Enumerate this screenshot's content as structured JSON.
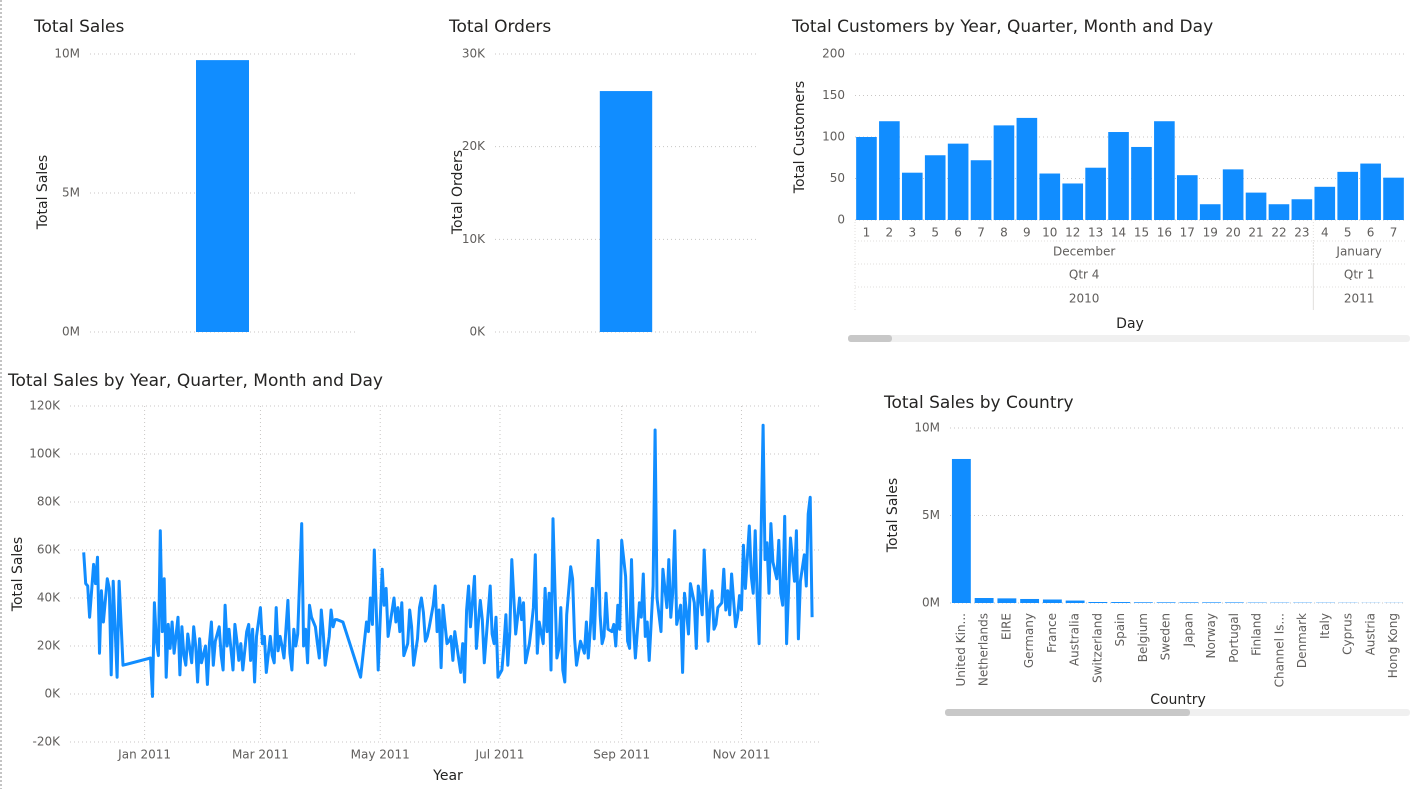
{
  "chart_data": [
    {
      "type": "bar",
      "title": "Total Sales",
      "y_label": "Total Sales",
      "color": "#118DFF",
      "categories": [
        null
      ],
      "values": [
        9780000
      ],
      "ylim": [
        0,
        10000000
      ],
      "yticks": [
        {
          "value": 0,
          "label": "0M"
        },
        {
          "value": 5000000,
          "label": "5M"
        },
        {
          "value": 10000000,
          "label": "10M"
        }
      ],
      "grid": true
    },
    {
      "type": "bar",
      "title": "Total Orders",
      "y_label": "Total Orders",
      "color": "#118DFF",
      "categories": [
        null
      ],
      "values": [
        26000
      ],
      "ylim": [
        0,
        30000
      ],
      "yticks": [
        {
          "value": 0,
          "label": "0K"
        },
        {
          "value": 10000,
          "label": "10K"
        },
        {
          "value": 20000,
          "label": "20K"
        },
        {
          "value": 30000,
          "label": "30K"
        }
      ],
      "grid": true
    },
    {
      "type": "bar",
      "title": "Total Customers by Year, Quarter, Month and Day",
      "y_label": "Total Customers",
      "x_label": "Day",
      "color": "#118DFF",
      "categories": [
        "1",
        "2",
        "3",
        "5",
        "6",
        "7",
        "8",
        "9",
        "10",
        "12",
        "13",
        "14",
        "15",
        "16",
        "17",
        "19",
        "20",
        "21",
        "22",
        "23",
        "4",
        "5",
        "6",
        "7"
      ],
      "months": [
        "December",
        "December",
        "December",
        "December",
        "December",
        "December",
        "December",
        "December",
        "December",
        "December",
        "December",
        "December",
        "December",
        "December",
        "December",
        "December",
        "December",
        "December",
        "December",
        "December",
        "January",
        "January",
        "January",
        "January"
      ],
      "quarters": [
        "Qtr 4",
        "Qtr 4",
        "Qtr 4",
        "Qtr 4",
        "Qtr 4",
        "Qtr 4",
        "Qtr 4",
        "Qtr 4",
        "Qtr 4",
        "Qtr 4",
        "Qtr 4",
        "Qtr 4",
        "Qtr 4",
        "Qtr 4",
        "Qtr 4",
        "Qtr 4",
        "Qtr 4",
        "Qtr 4",
        "Qtr 4",
        "Qtr 4",
        "Qtr 1",
        "Qtr 1",
        "Qtr 1",
        "Qtr 1"
      ],
      "years": [
        "2010",
        "2010",
        "2010",
        "2010",
        "2010",
        "2010",
        "2010",
        "2010",
        "2010",
        "2010",
        "2010",
        "2010",
        "2010",
        "2010",
        "2010",
        "2010",
        "2010",
        "2010",
        "2010",
        "2010",
        "2011",
        "2011",
        "2011",
        "2011"
      ],
      "values": [
        100,
        119,
        57,
        78,
        92,
        72,
        114,
        123,
        56,
        44,
        63,
        106,
        88,
        119,
        54,
        19,
        61,
        33,
        19,
        25,
        40,
        58,
        68,
        51
      ],
      "ylim": [
        0,
        200
      ],
      "yticks": [
        0,
        50,
        100,
        150,
        200
      ],
      "grid": true
    },
    {
      "type": "line",
      "title": "Total Sales by Year, Quarter, Month and Day",
      "y_label": "Total Sales",
      "x_label": "Year",
      "color": "#118DFF",
      "x": [
        0,
        1,
        2,
        3,
        5,
        6,
        7,
        8,
        9,
        10,
        12,
        13,
        14,
        15,
        17,
        18,
        20,
        34,
        35,
        36,
        37,
        38,
        39,
        40,
        41,
        42,
        43,
        44,
        45,
        46,
        48,
        49,
        50,
        51,
        52,
        53,
        55,
        56,
        57,
        58,
        59,
        60,
        62,
        63,
        64,
        65,
        66,
        67,
        69,
        70,
        71,
        72,
        73,
        74,
        76,
        77,
        78,
        79,
        80,
        81,
        83,
        84,
        85,
        86,
        87,
        88,
        90,
        91,
        92,
        93,
        95,
        96,
        97,
        98,
        99,
        100,
        101,
        102,
        104,
        105,
        106,
        107,
        108,
        109,
        111,
        112,
        113,
        114,
        115,
        116,
        118,
        119,
        120,
        121,
        122,
        123,
        125,
        126,
        127,
        128,
        129,
        132,
        141,
        144,
        145,
        146,
        147,
        148,
        149,
        150,
        152,
        153,
        154,
        155,
        156,
        158,
        159,
        160,
        161,
        162,
        163,
        165,
        166,
        167,
        168,
        170,
        171,
        172,
        173,
        174,
        175,
        176,
        178,
        179,
        180,
        181,
        182,
        183,
        185,
        186,
        187,
        188,
        189,
        190,
        192,
        193,
        194,
        195,
        196,
        197,
        199,
        200,
        201,
        202,
        203,
        204,
        206,
        207,
        208,
        209,
        210,
        211,
        213,
        214,
        215,
        216,
        217,
        218,
        220,
        221,
        222,
        223,
        224,
        225,
        227,
        228,
        229,
        230,
        231,
        232,
        234,
        235,
        236,
        237,
        238,
        239,
        241,
        242,
        243,
        244,
        245,
        246,
        248,
        249,
        250,
        251,
        252,
        253,
        255,
        256,
        257,
        258,
        259,
        260,
        262,
        263,
        264,
        265,
        266,
        267,
        269,
        270,
        271,
        272,
        273,
        274,
        276,
        277,
        278,
        279,
        280,
        281,
        283,
        284,
        285,
        286,
        287,
        288,
        290,
        291,
        292,
        293,
        294,
        295,
        297,
        298,
        299,
        300,
        301,
        302,
        304,
        305,
        306,
        307,
        308,
        309,
        311,
        312,
        313,
        314,
        315,
        316,
        318,
        319,
        320,
        321,
        322,
        323,
        325,
        326,
        327,
        328,
        329,
        330,
        332,
        333,
        334,
        335,
        336,
        337,
        339,
        340,
        341,
        342,
        343,
        344,
        346,
        347,
        348,
        349,
        350,
        351,
        353,
        354,
        355,
        356,
        357,
        358,
        360,
        361,
        362,
        363,
        364,
        365,
        367,
        368,
        369,
        370,
        371
      ],
      "values": [
        59000,
        46000,
        45000,
        32000,
        54000,
        46000,
        57000,
        17000,
        43000,
        30000,
        48000,
        44000,
        8000,
        47000,
        7000,
        47000,
        12000,
        15000,
        -1000,
        38000,
        22000,
        16000,
        68000,
        26000,
        48000,
        7000,
        29000,
        19000,
        30000,
        17000,
        32000,
        8000,
        28000,
        16000,
        12000,
        25000,
        13000,
        28000,
        20000,
        5000,
        23000,
        13000,
        20000,
        4000,
        21000,
        30000,
        12000,
        22000,
        28000,
        16000,
        10000,
        37000,
        20000,
        27000,
        10000,
        29000,
        22000,
        14000,
        21000,
        10000,
        26000,
        29000,
        14000,
        27000,
        5000,
        24000,
        36000,
        21000,
        24000,
        9000,
        24000,
        16000,
        13000,
        36000,
        18000,
        24000,
        20000,
        15000,
        39000,
        17000,
        10000,
        27000,
        20000,
        25000,
        71000,
        20000,
        27000,
        13000,
        37000,
        32000,
        28000,
        21000,
        15000,
        35000,
        25000,
        12000,
        24000,
        35000,
        28000,
        31000,
        31000,
        30000,
        7000,
        30000,
        26000,
        40000,
        29000,
        60000,
        35000,
        10000,
        52000,
        37000,
        44000,
        24000,
        29000,
        40000,
        30000,
        36000,
        26000,
        38000,
        16000,
        21000,
        35000,
        28000,
        12000,
        23000,
        36000,
        40000,
        34000,
        22000,
        24000,
        28000,
        37000,
        45000,
        26000,
        35000,
        11000,
        37000,
        21000,
        22000,
        24000,
        14000,
        26000,
        20000,
        9000,
        21000,
        5000,
        35000,
        45000,
        28000,
        49000,
        19000,
        30000,
        39000,
        31000,
        13000,
        34000,
        45000,
        25000,
        21000,
        32000,
        7000,
        10000,
        20000,
        33000,
        12000,
        26000,
        56000,
        25000,
        32000,
        40000,
        31000,
        38000,
        13000,
        21000,
        28000,
        36000,
        58000,
        17000,
        30000,
        21000,
        44000,
        26000,
        42000,
        10000,
        73000,
        15000,
        19000,
        36000,
        10000,
        5000,
        33000,
        53000,
        48000,
        23000,
        12000,
        17000,
        22000,
        17000,
        30000,
        15000,
        27000,
        44000,
        23000,
        64000,
        33000,
        21000,
        24000,
        42000,
        27000,
        26000,
        29000,
        20000,
        37000,
        27000,
        64000,
        49000,
        22000,
        19000,
        56000,
        28000,
        15000,
        38000,
        32000,
        50000,
        24000,
        30000,
        14000,
        45000,
        110000,
        40000,
        33000,
        26000,
        52000,
        36000,
        56000,
        32000,
        42000,
        68000,
        29000,
        37000,
        9000,
        42000,
        34000,
        25000,
        46000,
        38000,
        19000,
        45000,
        40000,
        33000,
        60000,
        22000,
        38000,
        43000,
        27000,
        29000,
        36000,
        38000,
        52000,
        35000,
        43000,
        33000,
        50000,
        28000,
        32000,
        41000,
        35000,
        62000,
        44000,
        70000,
        49000,
        42000,
        68000,
        40000,
        21000,
        112000,
        56000,
        63000,
        42000,
        71000,
        55000,
        48000,
        64000,
        42000,
        37000,
        74000,
        21000,
        65000,
        56000,
        47000,
        68000,
        23000,
        47000,
        58000,
        45000,
        75000,
        82000,
        32000
      ],
      "xlim": [
        -7,
        375
      ],
      "xticks": [
        {
          "value": 31,
          "label": "Jan 2011"
        },
        {
          "value": 90,
          "label": "Mar 2011"
        },
        {
          "value": 151,
          "label": "May 2011"
        },
        {
          "value": 212,
          "label": "Jul 2011"
        },
        {
          "value": 274,
          "label": "Sep 2011"
        },
        {
          "value": 335,
          "label": "Nov 2011"
        }
      ],
      "ylim": [
        -20000,
        120000
      ],
      "yticks": [
        {
          "value": -20000,
          "label": "-20K"
        },
        {
          "value": 0,
          "label": "0K"
        },
        {
          "value": 20000,
          "label": "20K"
        },
        {
          "value": 40000,
          "label": "40K"
        },
        {
          "value": 60000,
          "label": "60K"
        },
        {
          "value": 80000,
          "label": "80K"
        },
        {
          "value": 100000,
          "label": "100K"
        },
        {
          "value": 120000,
          "label": "120K"
        }
      ],
      "grid": true
    },
    {
      "type": "bar",
      "title": "Total Sales by Country",
      "y_label": "Total Sales",
      "x_label": "Country",
      "color": "#118DFF",
      "categories": [
        "United Kin...",
        "Netherlands",
        "EIRE",
        "Germany",
        "France",
        "Australia",
        "Switzerland",
        "Spain",
        "Belgium",
        "Sweden",
        "Japan",
        "Norway",
        "Portugal",
        "Finland",
        "Channel Is...",
        "Denmark",
        "Italy",
        "Cyprus",
        "Austria",
        "Hong Kong"
      ],
      "values": [
        8230000,
        285000,
        265000,
        230000,
        200000,
        140000,
        57000,
        55000,
        41000,
        38000,
        37000,
        36000,
        33000,
        23000,
        20000,
        19000,
        17000,
        14000,
        10000,
        10000
      ],
      "ylim": [
        0,
        10000000
      ],
      "yticks": [
        {
          "value": 0,
          "label": "0M"
        },
        {
          "value": 5000000,
          "label": "5M"
        },
        {
          "value": 10000000,
          "label": "10M"
        }
      ],
      "grid": true
    }
  ]
}
